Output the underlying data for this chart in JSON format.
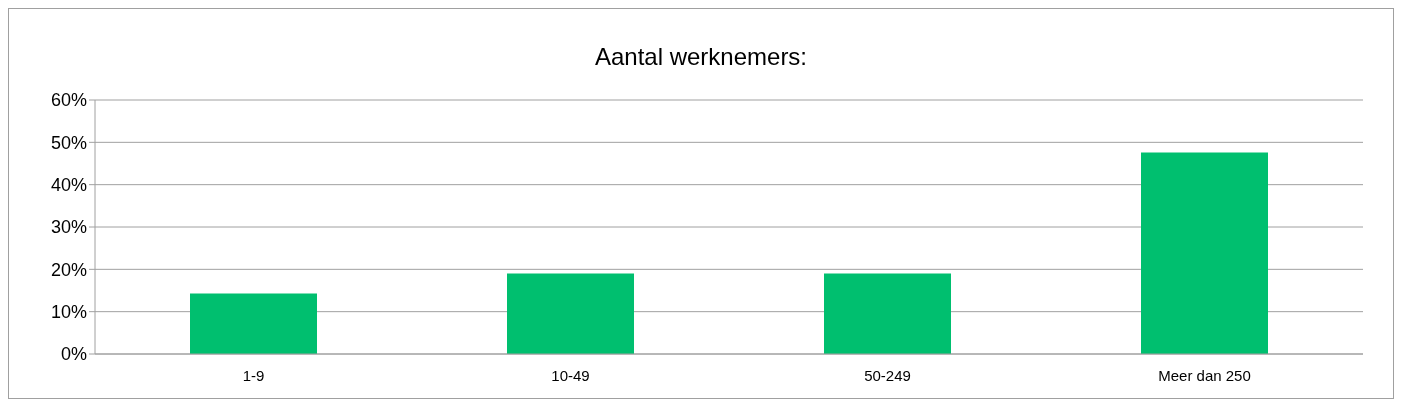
{
  "chart_data": {
    "type": "bar",
    "title": "Aantal werknemers:",
    "categories": [
      "1-9",
      "10-49",
      "50-249",
      "Meer dan 250"
    ],
    "values": [
      14.3,
      19.0,
      19.0,
      47.6
    ],
    "color": "#00bf6f",
    "ylim": [
      0,
      60
    ],
    "yticks": [
      {
        "value": 0,
        "label": "0%"
      },
      {
        "value": 10,
        "label": "10%"
      },
      {
        "value": 20,
        "label": "20%"
      },
      {
        "value": 30,
        "label": "30%"
      },
      {
        "value": 40,
        "label": "40%"
      },
      {
        "value": 50,
        "label": "50%"
      },
      {
        "value": 60,
        "label": "60%"
      }
    ],
    "grid": "y",
    "legend": false
  }
}
